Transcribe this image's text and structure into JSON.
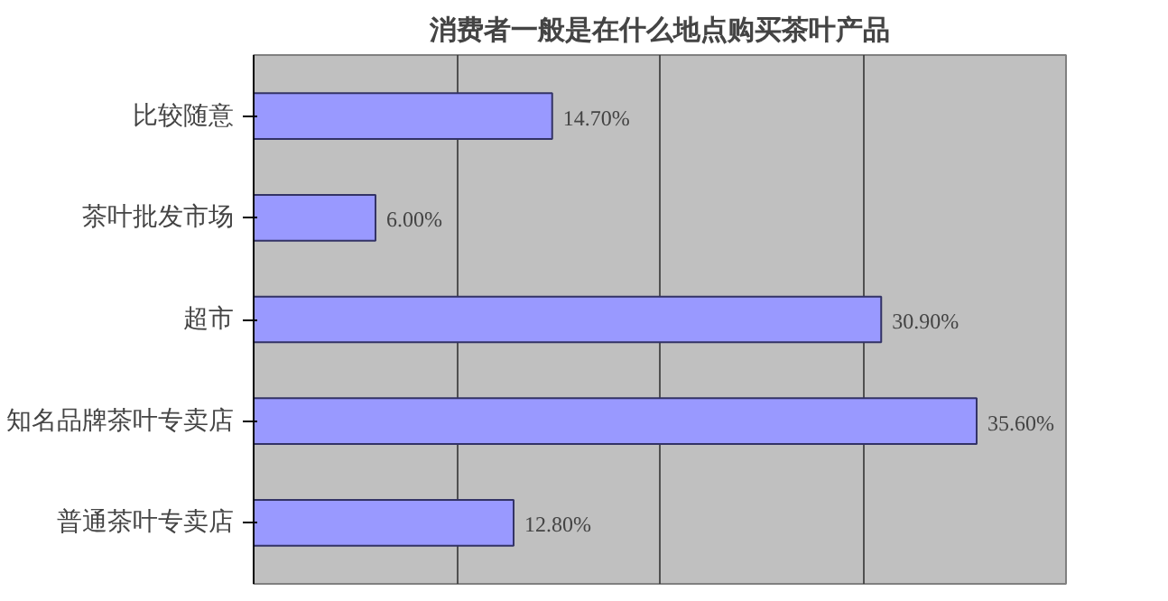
{
  "chart_data": {
    "type": "bar",
    "orientation": "horizontal",
    "title": "消费者一般是在什么地点购买茶叶产品",
    "categories": [
      "比较随意",
      "茶叶批发市场",
      "超市",
      "知名品牌茶叶专卖店",
      "普通茶叶专卖店"
    ],
    "values": [
      14.7,
      6.0,
      30.9,
      35.6,
      12.8
    ],
    "value_labels": [
      "14.70%",
      "6.00%",
      "30.90%",
      "35.60%",
      "12.80%"
    ],
    "color": "#9999ff",
    "xlim": [
      0,
      40
    ],
    "xticks": [
      {
        "value": 0,
        "label": null
      },
      {
        "value": 10,
        "label": null
      },
      {
        "value": 20,
        "label": null
      },
      {
        "value": 30,
        "label": null
      },
      {
        "value": 40,
        "label": null
      }
    ],
    "tick_labels": "y",
    "grid": "x"
  }
}
